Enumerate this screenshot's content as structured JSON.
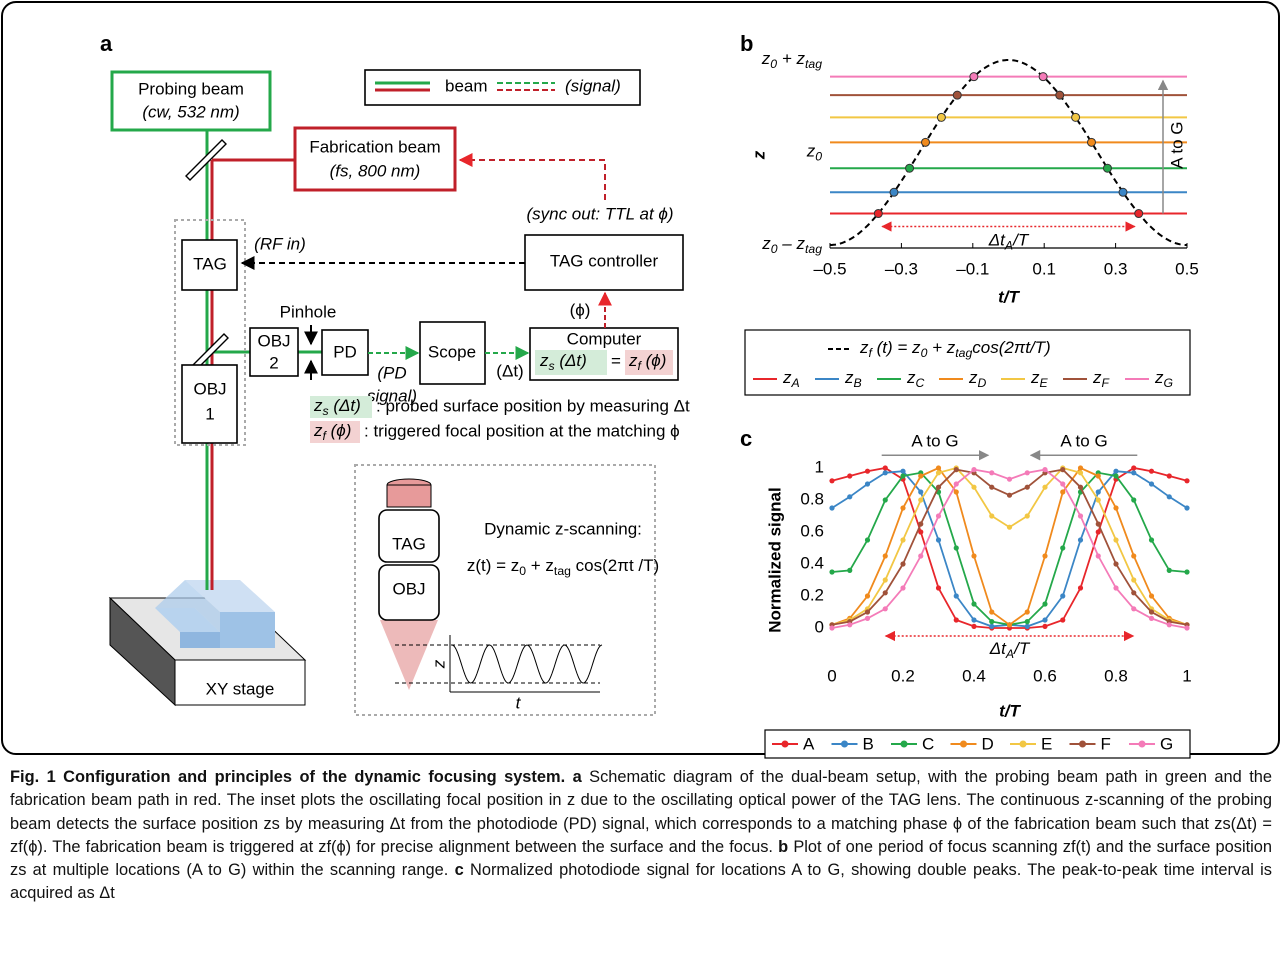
{
  "panel_a": {
    "label": "a",
    "probing_beam": {
      "title": "Probing beam",
      "spec": "(cw, 532 nm)"
    },
    "fabrication_beam": {
      "title": "Fabrication beam",
      "spec": "(fs, 800 nm)"
    },
    "legend": {
      "beam": "beam",
      "signal": "(signal)"
    },
    "tag": "TAG",
    "rf_in": "(RF in)",
    "tag_controller": "TAG controller",
    "sync_out": "(sync out: TTL at ϕ)",
    "pinhole": "Pinhole",
    "obj2": {
      "line1": "OBJ",
      "line2": "2"
    },
    "pd": "PD",
    "pd_signal": {
      "line1": "(PD",
      "line2": "signal)"
    },
    "scope": "Scope",
    "delta_t": "(Δt)",
    "phi": "(ϕ)",
    "computer": "Computer",
    "zs": [
      "z",
      "s",
      " (Δt)"
    ],
    "equals": "=",
    "zf": [
      "z",
      "f",
      " (ϕ)"
    ],
    "obj1": {
      "line1": "OBJ",
      "line2": "1"
    },
    "notes": [
      {
        "symbol": [
          "z",
          "s",
          " (Δt)"
        ],
        "text": ": probed surface position by measuring Δt"
      },
      {
        "symbol": [
          "z",
          "f",
          " (ϕ)"
        ],
        "text": ": triggered focal position at the matching ϕ"
      }
    ],
    "stage": "XY stage",
    "inset": {
      "tag": "TAG",
      "obj": "OBJ",
      "title": "Dynamic z-scanning:",
      "formula": [
        "z(t) = z",
        "0",
        " + z",
        "tag",
        " cos(2πt /T)"
      ],
      "y_label": "z",
      "x_label": "t"
    }
  },
  "chart_data": [
    {
      "type": "hline",
      "panel_label": "b",
      "y_label": "z",
      "x_label": "t/T",
      "xlim": [
        -0.5,
        0.5
      ],
      "xticks": [
        {
          "value": -0.5,
          "label": "–0.5"
        },
        {
          "value": -0.3,
          "label": "–0.3"
        },
        {
          "value": -0.1,
          "label": "–0.1"
        },
        0.1,
        0.3,
        0.5
      ],
      "ylim": [
        -1,
        1
      ],
      "yticks": [
        {
          "value": 1,
          "label": [
            "z",
            "0",
            " + z",
            "tag"
          ]
        },
        {
          "value": 0,
          "label": [
            "z",
            "0"
          ]
        },
        {
          "value": -1,
          "label": [
            "z",
            "0",
            " – z",
            "tag"
          ]
        }
      ],
      "curve": {
        "name": [
          "z",
          "f",
          " (t) = z",
          "0",
          " + z",
          "tag",
          "cos(2πt/T)"
        ],
        "color": "#000000"
      },
      "series": [
        {
          "name": [
            "z",
            "A"
          ],
          "color": "#e8262b",
          "values": [
            -0.66
          ]
        },
        {
          "name": [
            "z",
            "B"
          ],
          "color": "#3b86c6",
          "values": [
            -0.43
          ]
        },
        {
          "name": [
            "z",
            "C"
          ],
          "color": "#24a84a",
          "values": [
            -0.17
          ]
        },
        {
          "name": [
            "z",
            "D"
          ],
          "color": "#f08a1d",
          "values": [
            0.11
          ]
        },
        {
          "name": [
            "z",
            "E"
          ],
          "color": "#f2c744",
          "values": [
            0.38
          ]
        },
        {
          "name": [
            "z",
            "F"
          ],
          "color": "#a0523a",
          "values": [
            0.62
          ]
        },
        {
          "name": [
            "z",
            "G"
          ],
          "color": "#f47bb8",
          "values": [
            0.82
          ]
        }
      ],
      "annotations": [
        "A to G"
      ],
      "delta_label": [
        "Δt",
        "A",
        "/T"
      ]
    },
    {
      "type": "line",
      "panel_label": "c",
      "y_label": "Normalized signal",
      "x_label": "t/T",
      "x": [
        0,
        0.05,
        0.1,
        0.15,
        0.2,
        0.25,
        0.3,
        0.35,
        0.4,
        0.45,
        0.5,
        0.55,
        0.6,
        0.65,
        0.7,
        0.75,
        0.8,
        0.85,
        0.9,
        0.95,
        1
      ],
      "xlim": [
        0,
        1
      ],
      "xticks": [
        0,
        0.2,
        0.4,
        0.6,
        0.8,
        1
      ],
      "ylim": [
        -0.1,
        1.15
      ],
      "yticks": [
        0,
        0.2,
        0.4,
        0.6,
        0.8,
        1
      ],
      "series": [
        {
          "name": "A",
          "color": "#e8262b",
          "values": [
            0.92,
            0.95,
            0.98,
            1.0,
            0.93,
            0.6,
            0.25,
            0.05,
            0.01,
            0,
            0,
            0,
            0.01,
            0.05,
            0.25,
            0.6,
            0.93,
            1.0,
            0.98,
            0.95,
            0.92
          ]
        },
        {
          "name": "B",
          "color": "#3b86c6",
          "values": [
            0.75,
            0.82,
            0.9,
            0.97,
            0.98,
            0.85,
            0.55,
            0.2,
            0.05,
            0.01,
            0.02,
            0.01,
            0.05,
            0.2,
            0.55,
            0.85,
            0.98,
            0.97,
            0.9,
            0.82,
            0.75
          ]
        },
        {
          "name": "C",
          "color": "#24a84a",
          "values": [
            0.35,
            0.36,
            0.55,
            0.8,
            0.95,
            0.97,
            0.85,
            0.5,
            0.15,
            0.04,
            0.02,
            0.04,
            0.15,
            0.5,
            0.85,
            0.97,
            0.95,
            0.8,
            0.55,
            0.36,
            0.35
          ]
        },
        {
          "name": "D",
          "color": "#f08a1d",
          "values": [
            0.02,
            0.06,
            0.2,
            0.45,
            0.75,
            0.95,
            1.0,
            0.85,
            0.45,
            0.1,
            0.02,
            0.1,
            0.45,
            0.85,
            1.0,
            0.95,
            0.75,
            0.45,
            0.2,
            0.06,
            0.02
          ]
        },
        {
          "name": "E",
          "color": "#f2c744",
          "values": [
            0.02,
            0.05,
            0.12,
            0.3,
            0.55,
            0.8,
            0.97,
            1.0,
            0.88,
            0.7,
            0.63,
            0.7,
            0.88,
            1.0,
            0.97,
            0.8,
            0.55,
            0.3,
            0.12,
            0.05,
            0.02
          ]
        },
        {
          "name": "F",
          "color": "#a0523a",
          "values": [
            0.02,
            0.04,
            0.1,
            0.22,
            0.4,
            0.65,
            0.88,
            0.99,
            0.97,
            0.88,
            0.83,
            0.88,
            0.97,
            0.99,
            0.88,
            0.65,
            0.4,
            0.22,
            0.1,
            0.04,
            0.02
          ]
        },
        {
          "name": "G",
          "color": "#f47bb8",
          "values": [
            0,
            0.02,
            0.06,
            0.12,
            0.25,
            0.45,
            0.7,
            0.9,
            0.99,
            0.97,
            0.93,
            0.97,
            0.99,
            0.9,
            0.7,
            0.45,
            0.25,
            0.12,
            0.06,
            0.02,
            0
          ]
        }
      ],
      "annotations": [
        "A to G",
        "A to G"
      ],
      "delta_label": [
        "Δt",
        "A",
        "/T"
      ]
    }
  ],
  "caption": {
    "title": "Fig. 1 Configuration and principles of the dynamic focusing system.",
    "a_label": "a",
    "a_text": "Schematic diagram of the dual-beam setup, with the probing beam path in green and the fabrication beam path in red. The inset plots the oscillating focal position in z due to the oscillating optical power of the TAG lens. The continuous z-scanning of the probing beam detects the surface position zs by measuring Δt from the photodiode (PD) signal, which corresponds to a matching phase ϕ of the fabrication beam such that zs(Δt) = zf(ϕ). The fabrication beam is triggered at zf(ϕ) for precise alignment between the surface and the focus.",
    "b_label": "b",
    "b_text": "Plot of one period of focus scanning zf(t) and the surface position zs at multiple locations (A to G) within the scanning range.",
    "c_label": "c",
    "c_text": "Normalized photodiode signal for locations A to G, showing double peaks. The peak-to-peak time interval is acquired as Δt"
  }
}
